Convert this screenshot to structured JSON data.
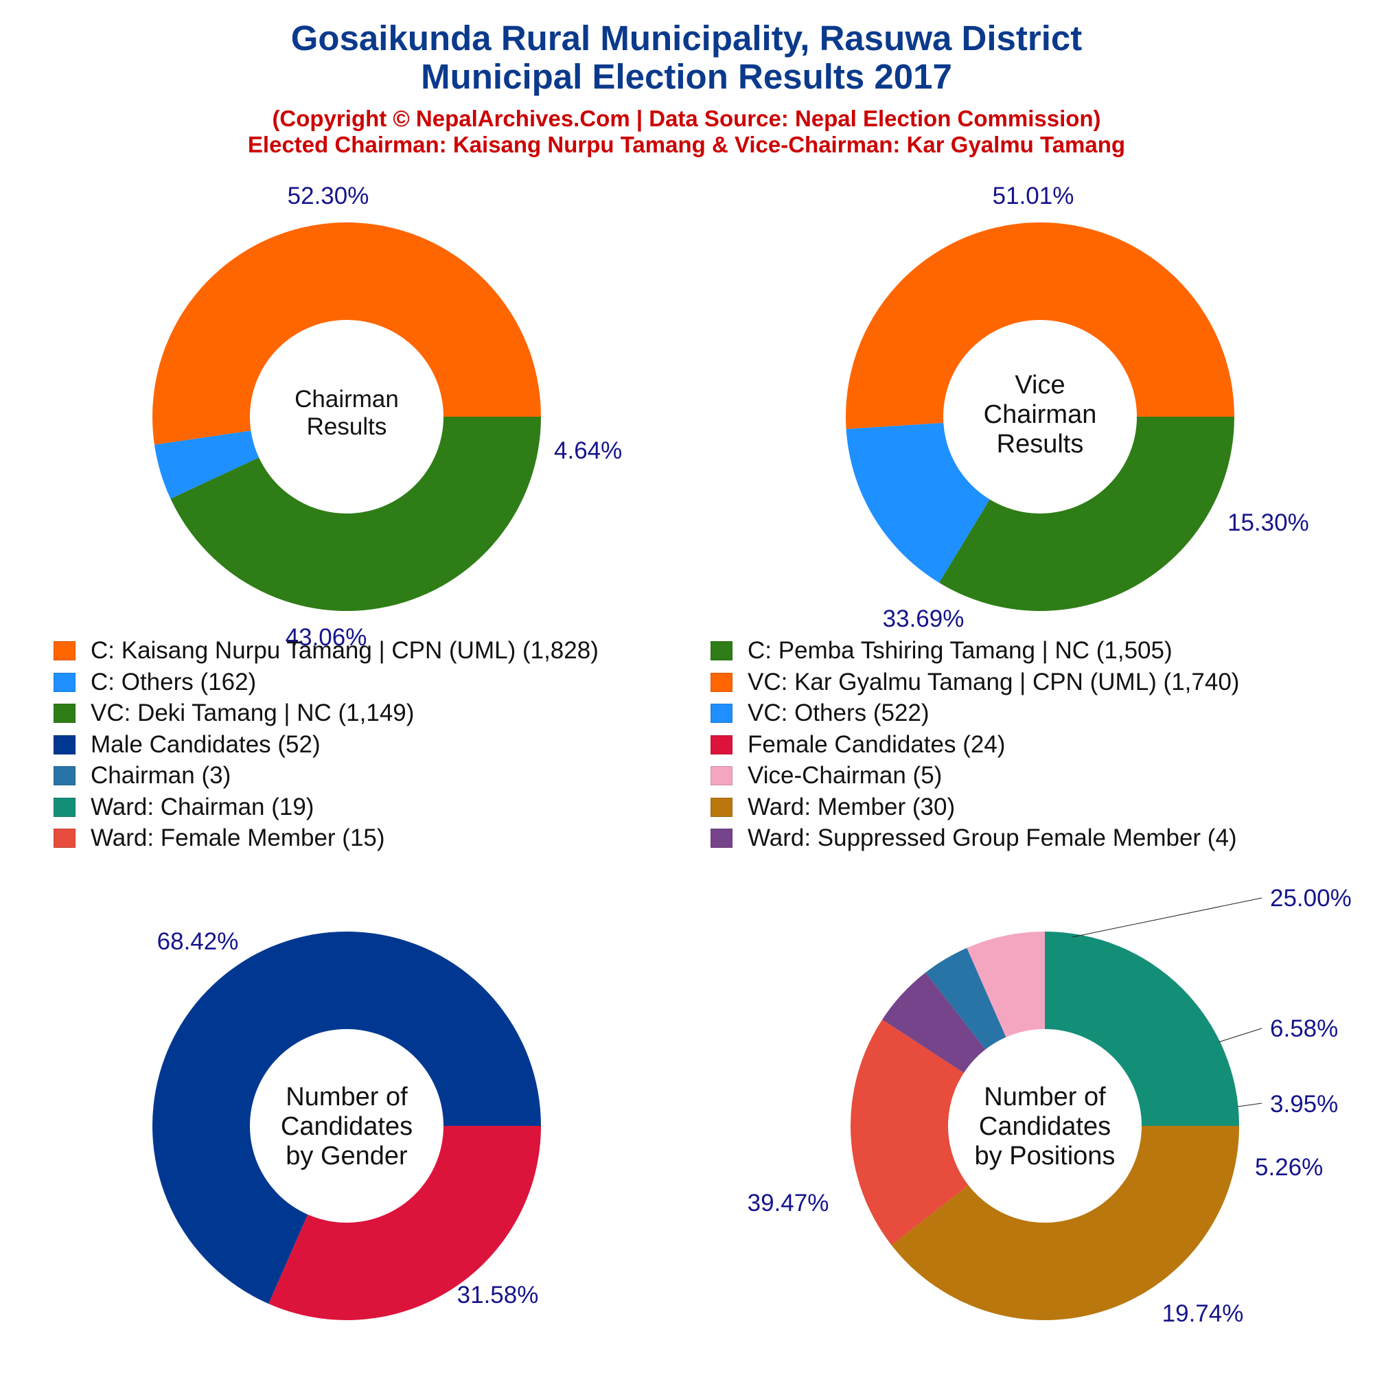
{
  "header": {
    "title_line1": "Gosaikunda Rural Municipality, Rasuwa District",
    "title_line2": "Municipal Election Results 2017",
    "subtitle_line1": "(Copyright © NepalArchives.Com | Data Source: Nepal Election Commission)",
    "subtitle_line2": "Elected Chairman: Kaisang Nurpu Tamang & Vice-Chairman: Kar Gyalmu Tamang"
  },
  "legend": [
    {
      "label": "C: Kaisang Nurpu Tamang | CPN (UML) (1,828)",
      "color": "#ff6600"
    },
    {
      "label": "C: Pemba Tshiring Tamang | NC (1,505)",
      "color": "#2e7d16"
    },
    {
      "label": "C: Others (162)",
      "color": "#1e90ff"
    },
    {
      "label": "VC: Kar Gyalmu Tamang | CPN (UML) (1,740)",
      "color": "#ff6600"
    },
    {
      "label": "VC: Deki Tamang | NC (1,149)",
      "color": "#2e7d16"
    },
    {
      "label": "VC: Others (522)",
      "color": "#1e90ff"
    },
    {
      "label": "Male Candidates (52)",
      "color": "#003891"
    },
    {
      "label": "Female Candidates (24)",
      "color": "#dc143c"
    },
    {
      "label": "Chairman (3)",
      "color": "#2874a6"
    },
    {
      "label": "Vice-Chairman (5)",
      "color": "#f4a6c0"
    },
    {
      "label": "Ward: Chairman (19)",
      "color": "#148f77"
    },
    {
      "label": "Ward: Member (30)",
      "color": "#b9770e"
    },
    {
      "label": "Ward: Female Member (15)",
      "color": "#e74c3c"
    },
    {
      "label": "Ward: Suppressed Group Female Member (4)",
      "color": "#76448a"
    }
  ],
  "chart_data": [
    {
      "type": "pie",
      "center_label": [
        "Chairman",
        "Results"
      ],
      "slices": [
        {
          "name": "C: Kaisang Nurpu Tamang | CPN (UML)",
          "value": 1828,
          "percent_label": "52.30%",
          "color": "#ff6600"
        },
        {
          "name": "C: Others",
          "value": 162,
          "percent_label": "4.64%",
          "color": "#1e90ff"
        },
        {
          "name": "C: Pemba Tshiring Tamang | NC",
          "value": 1505,
          "percent_label": "43.06%",
          "color": "#2e7d16"
        }
      ]
    },
    {
      "type": "pie",
      "center_label": [
        "Vice",
        "Chairman",
        "Results"
      ],
      "slices": [
        {
          "name": "VC: Kar Gyalmu Tamang | CPN (UML)",
          "value": 1740,
          "percent_label": "51.01%",
          "color": "#ff6600"
        },
        {
          "name": "VC: Others",
          "value": 522,
          "percent_label": "15.30%",
          "color": "#1e90ff"
        },
        {
          "name": "VC: Deki Tamang | NC",
          "value": 1149,
          "percent_label": "33.69%",
          "color": "#2e7d16"
        }
      ]
    },
    {
      "type": "pie",
      "center_label": [
        "Number of",
        "Candidates",
        "by Gender"
      ],
      "slices": [
        {
          "name": "Male Candidates",
          "value": 52,
          "percent_label": "68.42%",
          "color": "#003891"
        },
        {
          "name": "Female Candidates",
          "value": 24,
          "percent_label": "31.58%",
          "color": "#dc143c"
        }
      ]
    },
    {
      "type": "pie",
      "center_label": [
        "Number of",
        "Candidates",
        "by Positions"
      ],
      "slices": [
        {
          "name": "Ward: Chairman",
          "value": 19,
          "percent_label": "25.00%",
          "color": "#148f77"
        },
        {
          "name": "Vice-Chairman",
          "value": 5,
          "percent_label": "6.58%",
          "color": "#f4a6c0"
        },
        {
          "name": "Chairman",
          "value": 3,
          "percent_label": "3.95%",
          "color": "#2874a6"
        },
        {
          "name": "Ward: Suppressed Group Female Member",
          "value": 4,
          "percent_label": "5.26%",
          "color": "#76448a"
        },
        {
          "name": "Ward: Female Member",
          "value": 15,
          "percent_label": "19.74%",
          "color": "#e74c3c"
        },
        {
          "name": "Ward: Member",
          "value": 30,
          "percent_label": "39.47%",
          "color": "#b9770e"
        }
      ]
    }
  ]
}
